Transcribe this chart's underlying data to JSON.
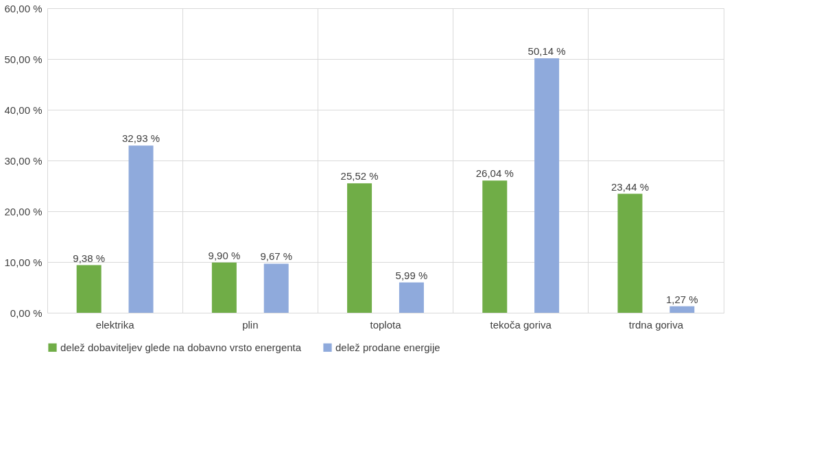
{
  "chart_data": {
    "type": "bar",
    "categories": [
      "elektrika",
      "plin",
      "toplota",
      "tekoča goriva",
      "trdna goriva"
    ],
    "series": [
      {
        "name": "delež dobaviteljev glede na dobavno vrsto energenta",
        "color": "#70ad47",
        "values": [
          9.38,
          9.9,
          25.52,
          26.04,
          23.44
        ],
        "value_labels": [
          "9,38 %",
          "9,90 %",
          "25,52 %",
          "26,04 %",
          "23,44 %"
        ]
      },
      {
        "name": "delež prodane energije",
        "color": "#8faadc",
        "values": [
          32.93,
          9.67,
          5.99,
          50.14,
          1.27
        ],
        "value_labels": [
          "32,93 %",
          "9,67 %",
          "5,99 %",
          "50,14 %",
          "1,27 %"
        ]
      }
    ],
    "ylim": [
      0,
      60
    ],
    "yticks": [
      {
        "value": 0,
        "label": "0,00 %"
      },
      {
        "value": 10,
        "label": "10,00 %"
      },
      {
        "value": 20,
        "label": "20,00 %"
      },
      {
        "value": 30,
        "label": "30,00 %"
      },
      {
        "value": 40,
        "label": "40,00 %"
      },
      {
        "value": 50,
        "label": "50,00 %"
      },
      {
        "value": 60,
        "label": "60,00 %"
      }
    ],
    "grid": true,
    "legend": "bottom"
  }
}
